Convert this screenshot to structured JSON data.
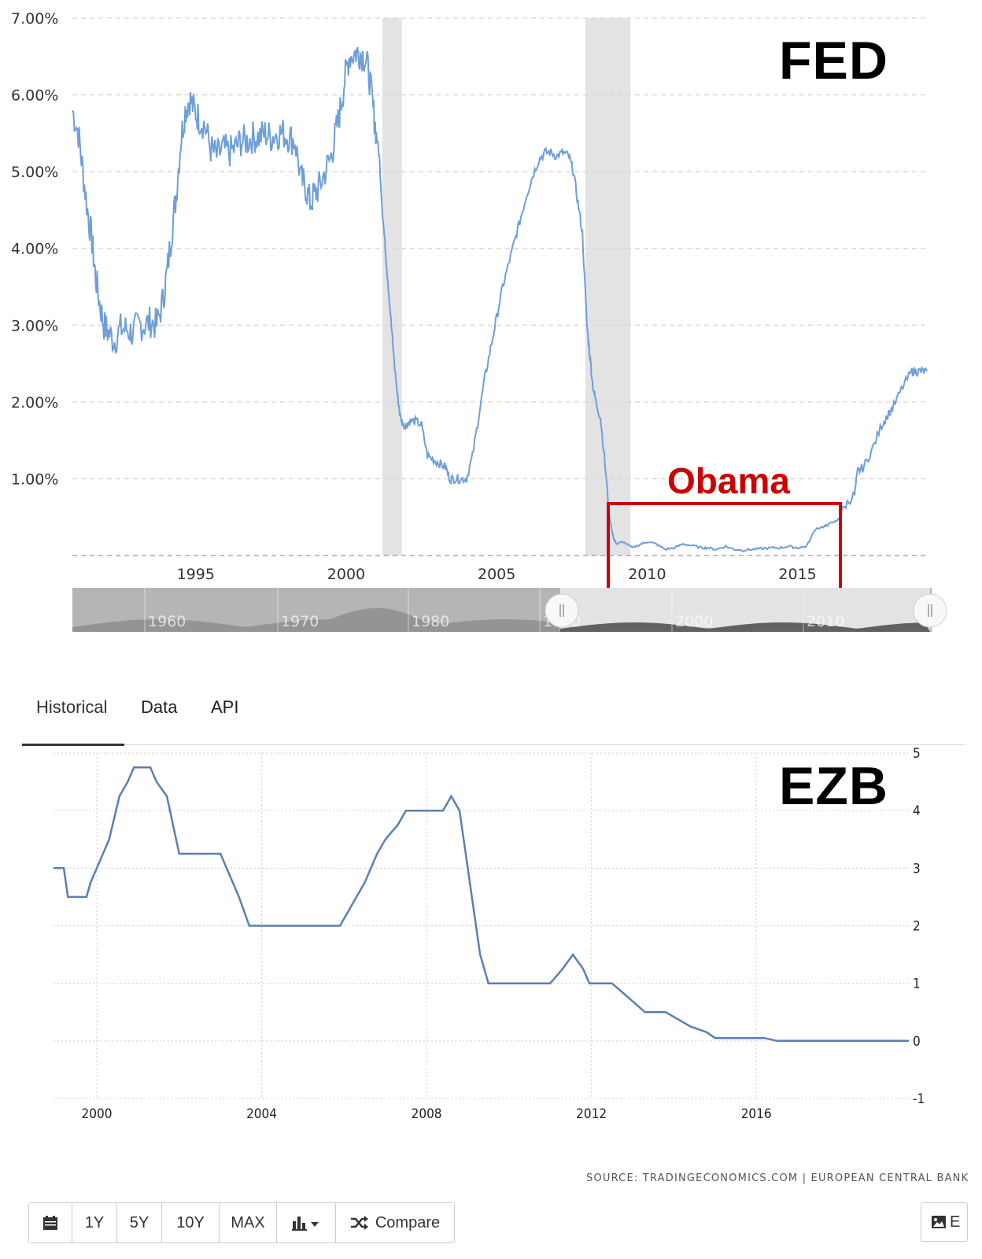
{
  "fed": {
    "title": "FED",
    "annotation": "Obama",
    "y_tick_labels": [
      "1.00%",
      "2.00%",
      "3.00%",
      "4.00%",
      "5.00%",
      "6.00%",
      "7.00%"
    ],
    "x_tick_labels": [
      "1995",
      "2000",
      "2005",
      "2010",
      "2015"
    ],
    "navigator_labels": [
      "1960",
      "1970",
      "1980",
      "1990",
      "2000",
      "2010"
    ],
    "line_color": "#6f9ed8",
    "recession_color": "#e3e3e3",
    "annotation_color": "#cc0000"
  },
  "tabs": [
    {
      "label": "Historical",
      "active": true
    },
    {
      "label": "Data",
      "active": false
    },
    {
      "label": "API",
      "active": false
    }
  ],
  "ecb": {
    "title": "EZB",
    "x_tick_labels": [
      "2000",
      "2004",
      "2008",
      "2012",
      "2016"
    ],
    "y_tick_labels": [
      "5",
      "4",
      "3",
      "2",
      "1",
      "0",
      "-1"
    ],
    "source": "SOURCE: TRADINGECONOMICS.COM | EUROPEAN CENTRAL BANK",
    "line_color": "#5b7fb3"
  },
  "toolbar": {
    "calendar_icon": "calendar-icon",
    "buttons": [
      "1Y",
      "5Y",
      "10Y",
      "MAX"
    ],
    "chart_type_icon": "bar-chart-icon",
    "compare_label": "Compare",
    "compare_icon": "shuffle-icon",
    "export_label": "E",
    "export_icon": "image-icon"
  },
  "chart_data": [
    {
      "type": "line",
      "title": "FED",
      "xlabel": "",
      "ylabel": "",
      "xlim": [
        1990.9,
        2019.3
      ],
      "ylim": [
        0,
        7
      ],
      "y_unit": "%",
      "grid": true,
      "recessions": [
        [
          2001.2,
          2001.85
        ],
        [
          2007.95,
          2009.45
        ]
      ],
      "annotation_box": {
        "label": "Obama",
        "x_range": [
          2009.0,
          2016.3
        ]
      },
      "series": [
        {
          "x": [
            1990.9,
            1991.1,
            1991.25,
            1991.4,
            1991.55,
            1991.65,
            1991.8,
            1991.95,
            1992.1,
            1992.3,
            1992.5,
            1992.7,
            1992.9,
            1993.1,
            1993.3,
            1993.5,
            1993.7,
            1993.9,
            1994.05,
            1994.2,
            1994.35,
            1994.5,
            1994.65,
            1994.8,
            1994.95,
            1995.1,
            1995.3,
            1995.5,
            1995.7,
            1995.9,
            1996.1,
            1996.3,
            1996.5,
            1996.7,
            1996.9,
            1997.1,
            1997.3,
            1997.5,
            1997.7,
            1997.9,
            1998.1,
            1998.3,
            1998.5,
            1998.65,
            1998.8,
            1998.95,
            1999.1,
            1999.3,
            1999.5,
            1999.65,
            1999.8,
            1999.95,
            2000.1,
            2000.3,
            2000.45,
            2000.6,
            2000.75,
            2000.9,
            2001.0,
            2001.1,
            2001.2,
            2001.3,
            2001.4,
            2001.5,
            2001.6,
            2001.7,
            2001.8,
            2001.9,
            2002.0,
            2002.1,
            2002.3,
            2002.5,
            2002.7,
            2002.9,
            2003.1,
            2003.3,
            2003.45,
            2003.6,
            2003.8,
            2004.0,
            2004.2,
            2004.4,
            2004.6,
            2004.8,
            2005.0,
            2005.2,
            2005.4,
            2005.6,
            2005.8,
            2006.0,
            2006.2,
            2006.4,
            2006.6,
            2006.8,
            2007.0,
            2007.2,
            2007.4,
            2007.55,
            2007.7,
            2007.85,
            2008.0,
            2008.1,
            2008.2,
            2008.3,
            2008.45,
            2008.6,
            2008.75,
            2008.9,
            2009.0,
            2009.2,
            2009.5,
            2009.8,
            2010.0,
            2010.3,
            2010.6,
            2010.9,
            2011.2,
            2011.5,
            2011.8,
            2012.0,
            2012.3,
            2012.6,
            2012.9,
            2013.2,
            2013.5,
            2013.8,
            2014.1,
            2014.4,
            2014.7,
            2015.0,
            2015.3,
            2015.6,
            2015.9,
            2016.0,
            2016.3,
            2016.6,
            2016.9,
            2017.0,
            2017.2,
            2017.5,
            2017.8,
            2017.95,
            2018.2,
            2018.5,
            2018.8,
            2018.95,
            2019.1,
            2019.3
          ],
          "y": [
            5.8,
            5.5,
            5.0,
            4.5,
            4.1,
            3.7,
            3.3,
            3.0,
            2.9,
            2.8,
            2.95,
            2.95,
            2.9,
            3.0,
            3.0,
            3.05,
            3.0,
            3.3,
            3.7,
            4.2,
            4.7,
            5.4,
            5.8,
            5.95,
            5.8,
            5.7,
            5.6,
            5.3,
            5.2,
            5.3,
            5.25,
            5.3,
            5.4,
            5.4,
            5.45,
            5.45,
            5.5,
            5.45,
            5.5,
            5.5,
            5.45,
            5.4,
            4.9,
            4.8,
            4.6,
            4.7,
            4.8,
            5.0,
            5.2,
            5.5,
            5.8,
            6.2,
            6.5,
            6.55,
            6.55,
            6.5,
            6.3,
            5.8,
            5.5,
            5.2,
            4.5,
            4.0,
            3.5,
            3.0,
            2.5,
            2.1,
            1.8,
            1.7,
            1.7,
            1.75,
            1.75,
            1.7,
            1.3,
            1.25,
            1.2,
            1.15,
            1.0,
            1.0,
            1.0,
            1.0,
            1.3,
            1.8,
            2.3,
            2.7,
            3.1,
            3.5,
            3.8,
            4.1,
            4.4,
            4.7,
            4.95,
            5.15,
            5.25,
            5.25,
            5.2,
            5.25,
            5.2,
            5.0,
            4.6,
            4.2,
            3.0,
            2.6,
            2.2,
            2.0,
            1.8,
            1.2,
            0.5,
            0.2,
            0.15,
            0.18,
            0.1,
            0.15,
            0.18,
            0.15,
            0.08,
            0.1,
            0.15,
            0.13,
            0.1,
            0.1,
            0.08,
            0.12,
            0.08,
            0.07,
            0.08,
            0.09,
            0.1,
            0.1,
            0.12,
            0.1,
            0.12,
            0.35,
            0.38,
            0.4,
            0.45,
            0.66,
            0.8,
            1.1,
            1.15,
            1.4,
            1.7,
            1.8,
            1.95,
            2.2,
            2.4,
            2.4,
            2.4,
            2.4
          ]
        }
      ]
    },
    {
      "type": "line",
      "title": "EZB",
      "xlabel": "",
      "ylabel": "",
      "xlim": [
        1998.95,
        2019.7
      ],
      "ylim": [
        -1,
        5
      ],
      "grid": true,
      "series": [
        {
          "x": [
            1998.95,
            1999.2,
            1999.3,
            1999.75,
            1999.85,
            2000.0,
            2000.3,
            2000.55,
            2000.75,
            2000.9,
            2001.0,
            2001.3,
            2001.45,
            2001.7,
            2001.85,
            2002.0,
            2002.8,
            2003.0,
            2003.3,
            2003.45,
            2003.7,
            2005.9,
            2006.1,
            2006.3,
            2006.5,
            2006.8,
            2007.0,
            2007.3,
            2007.5,
            2007.7,
            2008.4,
            2008.6,
            2008.8,
            2008.95,
            2009.1,
            2009.3,
            2009.5,
            2010.0,
            2011.0,
            2011.3,
            2011.55,
            2011.8,
            2011.95,
            2012.5,
            2012.9,
            2013.3,
            2013.8,
            2014.4,
            2014.8,
            2015.0,
            2016.2,
            2016.5,
            2017.0,
            2018.0,
            2019.7
          ],
          "y": [
            3.0,
            3.0,
            2.5,
            2.5,
            2.75,
            3.0,
            3.5,
            4.25,
            4.5,
            4.75,
            4.75,
            4.75,
            4.5,
            4.25,
            3.75,
            3.25,
            3.25,
            3.25,
            2.75,
            2.5,
            2.0,
            2.0,
            2.25,
            2.5,
            2.75,
            3.25,
            3.5,
            3.75,
            4.0,
            4.0,
            4.0,
            4.25,
            4.0,
            3.25,
            2.5,
            1.5,
            1.0,
            1.0,
            1.0,
            1.25,
            1.5,
            1.25,
            1.0,
            1.0,
            0.75,
            0.5,
            0.5,
            0.25,
            0.15,
            0.05,
            0.05,
            0.0,
            0.0,
            0.0,
            0.0
          ]
        }
      ]
    }
  ]
}
